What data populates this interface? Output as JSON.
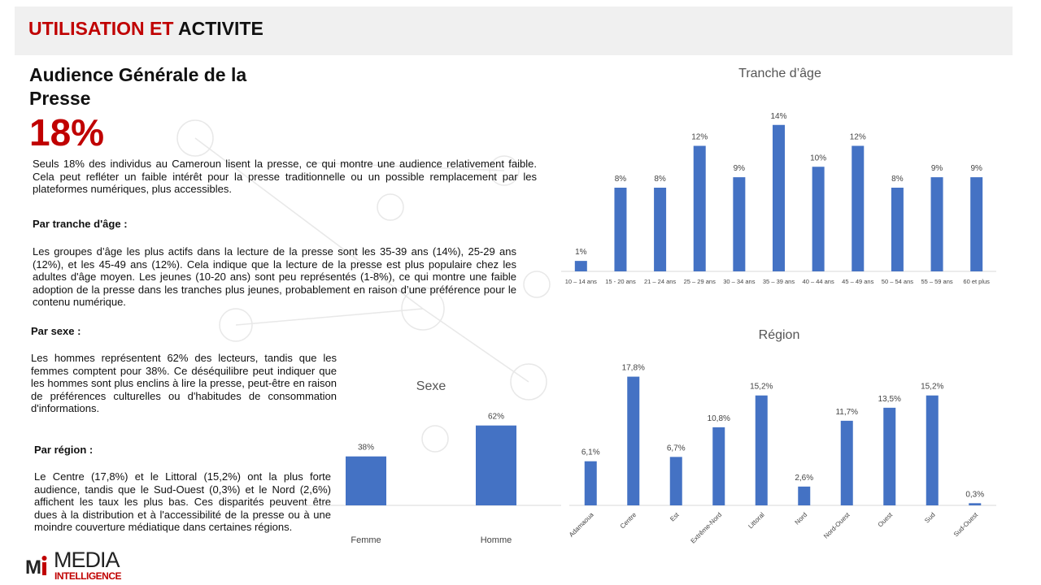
{
  "header": {
    "title_red": "UTILISATION ET",
    "title_black": "ACTIVITE"
  },
  "main_title": "Audience Générale de la Presse",
  "headline": "18%",
  "intro": "Seuls 18% des individus au Cameroun lisent la presse, ce qui montre une audience relativement faible. Cela peut refléter un faible intérêt pour la presse traditionnelle ou un possible remplacement par les plateformes numériques, plus accessibles.",
  "sections": [
    {
      "heading": "Par tranche d'âge :",
      "text": "Les groupes d’âge les plus actifs dans la lecture de la presse sont les 35-39 ans (14%), 25-29 ans (12%), et les 45-49 ans (12%). Cela indique que la lecture de la presse est plus populaire chez les adultes d'âge moyen. Les jeunes (10-20 ans) sont peu représentés (1-8%), ce qui montre une faible adoption de la presse dans les tranches plus jeunes, probablement en raison d’une préférence pour le contenu numérique."
    },
    {
      "heading": "Par sexe :",
      "text": "Les hommes représentent 62% des lecteurs, tandis que les femmes comptent pour 38%. Ce déséquilibre peut indiquer que les hommes sont plus enclins à lire la presse, peut-être en raison de préférences culturelles ou d'habitudes de consommation d'informations."
    },
    {
      "heading": "Par région :",
      "text": "Le Centre (17,8%) et le Littoral (15,2%) ont la plus forte audience, tandis que le Sud-Ouest (0,3%) et le Nord (2,6%) affichent les taux les plus bas. Ces disparités peuvent être dues à la distribution et à l'accessibilité de la presse ou à une moindre couverture médiatique dans certaines régions."
    }
  ],
  "logo": {
    "top": "MEDIA",
    "bottom": "INTELLIGENCE"
  },
  "chart_data": [
    {
      "type": "bar",
      "title": "Tranche d’âge",
      "categories": [
        "10 – 14 ans",
        "15 - 20 ans",
        "21 – 24 ans",
        "25 – 29 ans",
        "30 – 34 ans",
        "35 – 39 ans",
        "40 – 44 ans",
        "45 – 49 ans",
        "50 – 54 ans",
        "55 – 59 ans",
        "60 et plus"
      ],
      "values": [
        1,
        8,
        8,
        12,
        9,
        14,
        10,
        12,
        8,
        9,
        9
      ],
      "value_labels": [
        "1%",
        "8%",
        "8%",
        "12%",
        "9%",
        "14%",
        "10%",
        "12%",
        "8%",
        "9%",
        "9%"
      ],
      "color": "#4472c4",
      "ylim": [
        0,
        16
      ]
    },
    {
      "type": "bar",
      "title": "Région",
      "categories": [
        "Adamaoua",
        "Centre",
        "Est",
        "Extrême-Nord",
        "Littoral",
        "Nord",
        "Nord-Ouest",
        "Ouest",
        "Sud",
        "Sud-Ouest"
      ],
      "values": [
        6.1,
        17.8,
        6.7,
        10.8,
        15.2,
        2.6,
        11.7,
        13.5,
        15.2,
        0.3
      ],
      "value_labels": [
        "6,1%",
        "17,8%",
        "6,7%",
        "10,8%",
        "15,2%",
        "2,6%",
        "11,7%",
        "13,5%",
        "15,2%",
        "0,3%"
      ],
      "color": "#4472c4",
      "ylim": [
        0,
        20
      ]
    },
    {
      "type": "bar",
      "title": "Sexe",
      "categories": [
        "Femme",
        "Homme"
      ],
      "values": [
        38,
        62
      ],
      "value_labels": [
        "38%",
        "62%"
      ],
      "color": "#4472c4",
      "ylim": [
        0,
        70
      ]
    }
  ]
}
